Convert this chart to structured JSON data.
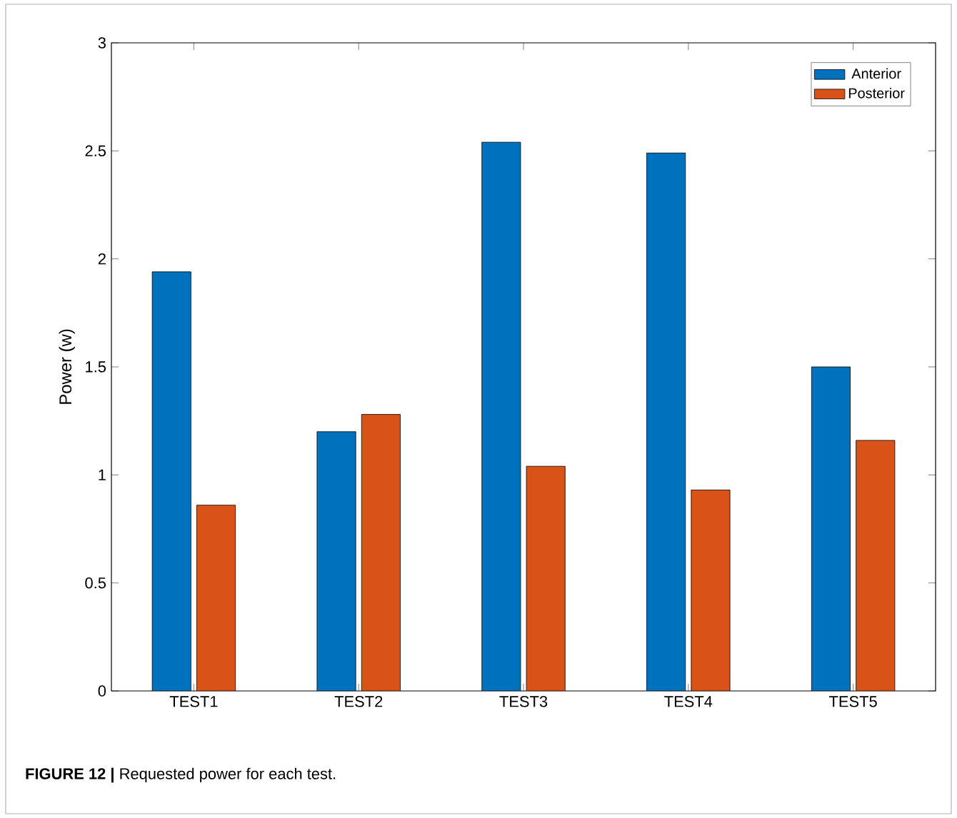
{
  "chart_data": {
    "type": "bar",
    "ylabel": "Power (w)",
    "categories": [
      "TEST1",
      "TEST2",
      "TEST3",
      "TEST4",
      "TEST5"
    ],
    "series": [
      {
        "name": "Anterior",
        "color": "#0072bd",
        "values": [
          1.94,
          1.2,
          2.54,
          2.49,
          1.5
        ]
      },
      {
        "name": "Posterior",
        "color": "#d95319",
        "values": [
          0.86,
          1.28,
          1.04,
          0.93,
          1.16
        ]
      }
    ],
    "ylim": [
      0,
      3
    ],
    "yticks": [
      0,
      0.5,
      1,
      1.5,
      2,
      2.5,
      3
    ],
    "legend": "top right",
    "grid": false,
    "annotations": [
      "**FIGURE 12 |** Requested power for each test."
    ]
  }
}
